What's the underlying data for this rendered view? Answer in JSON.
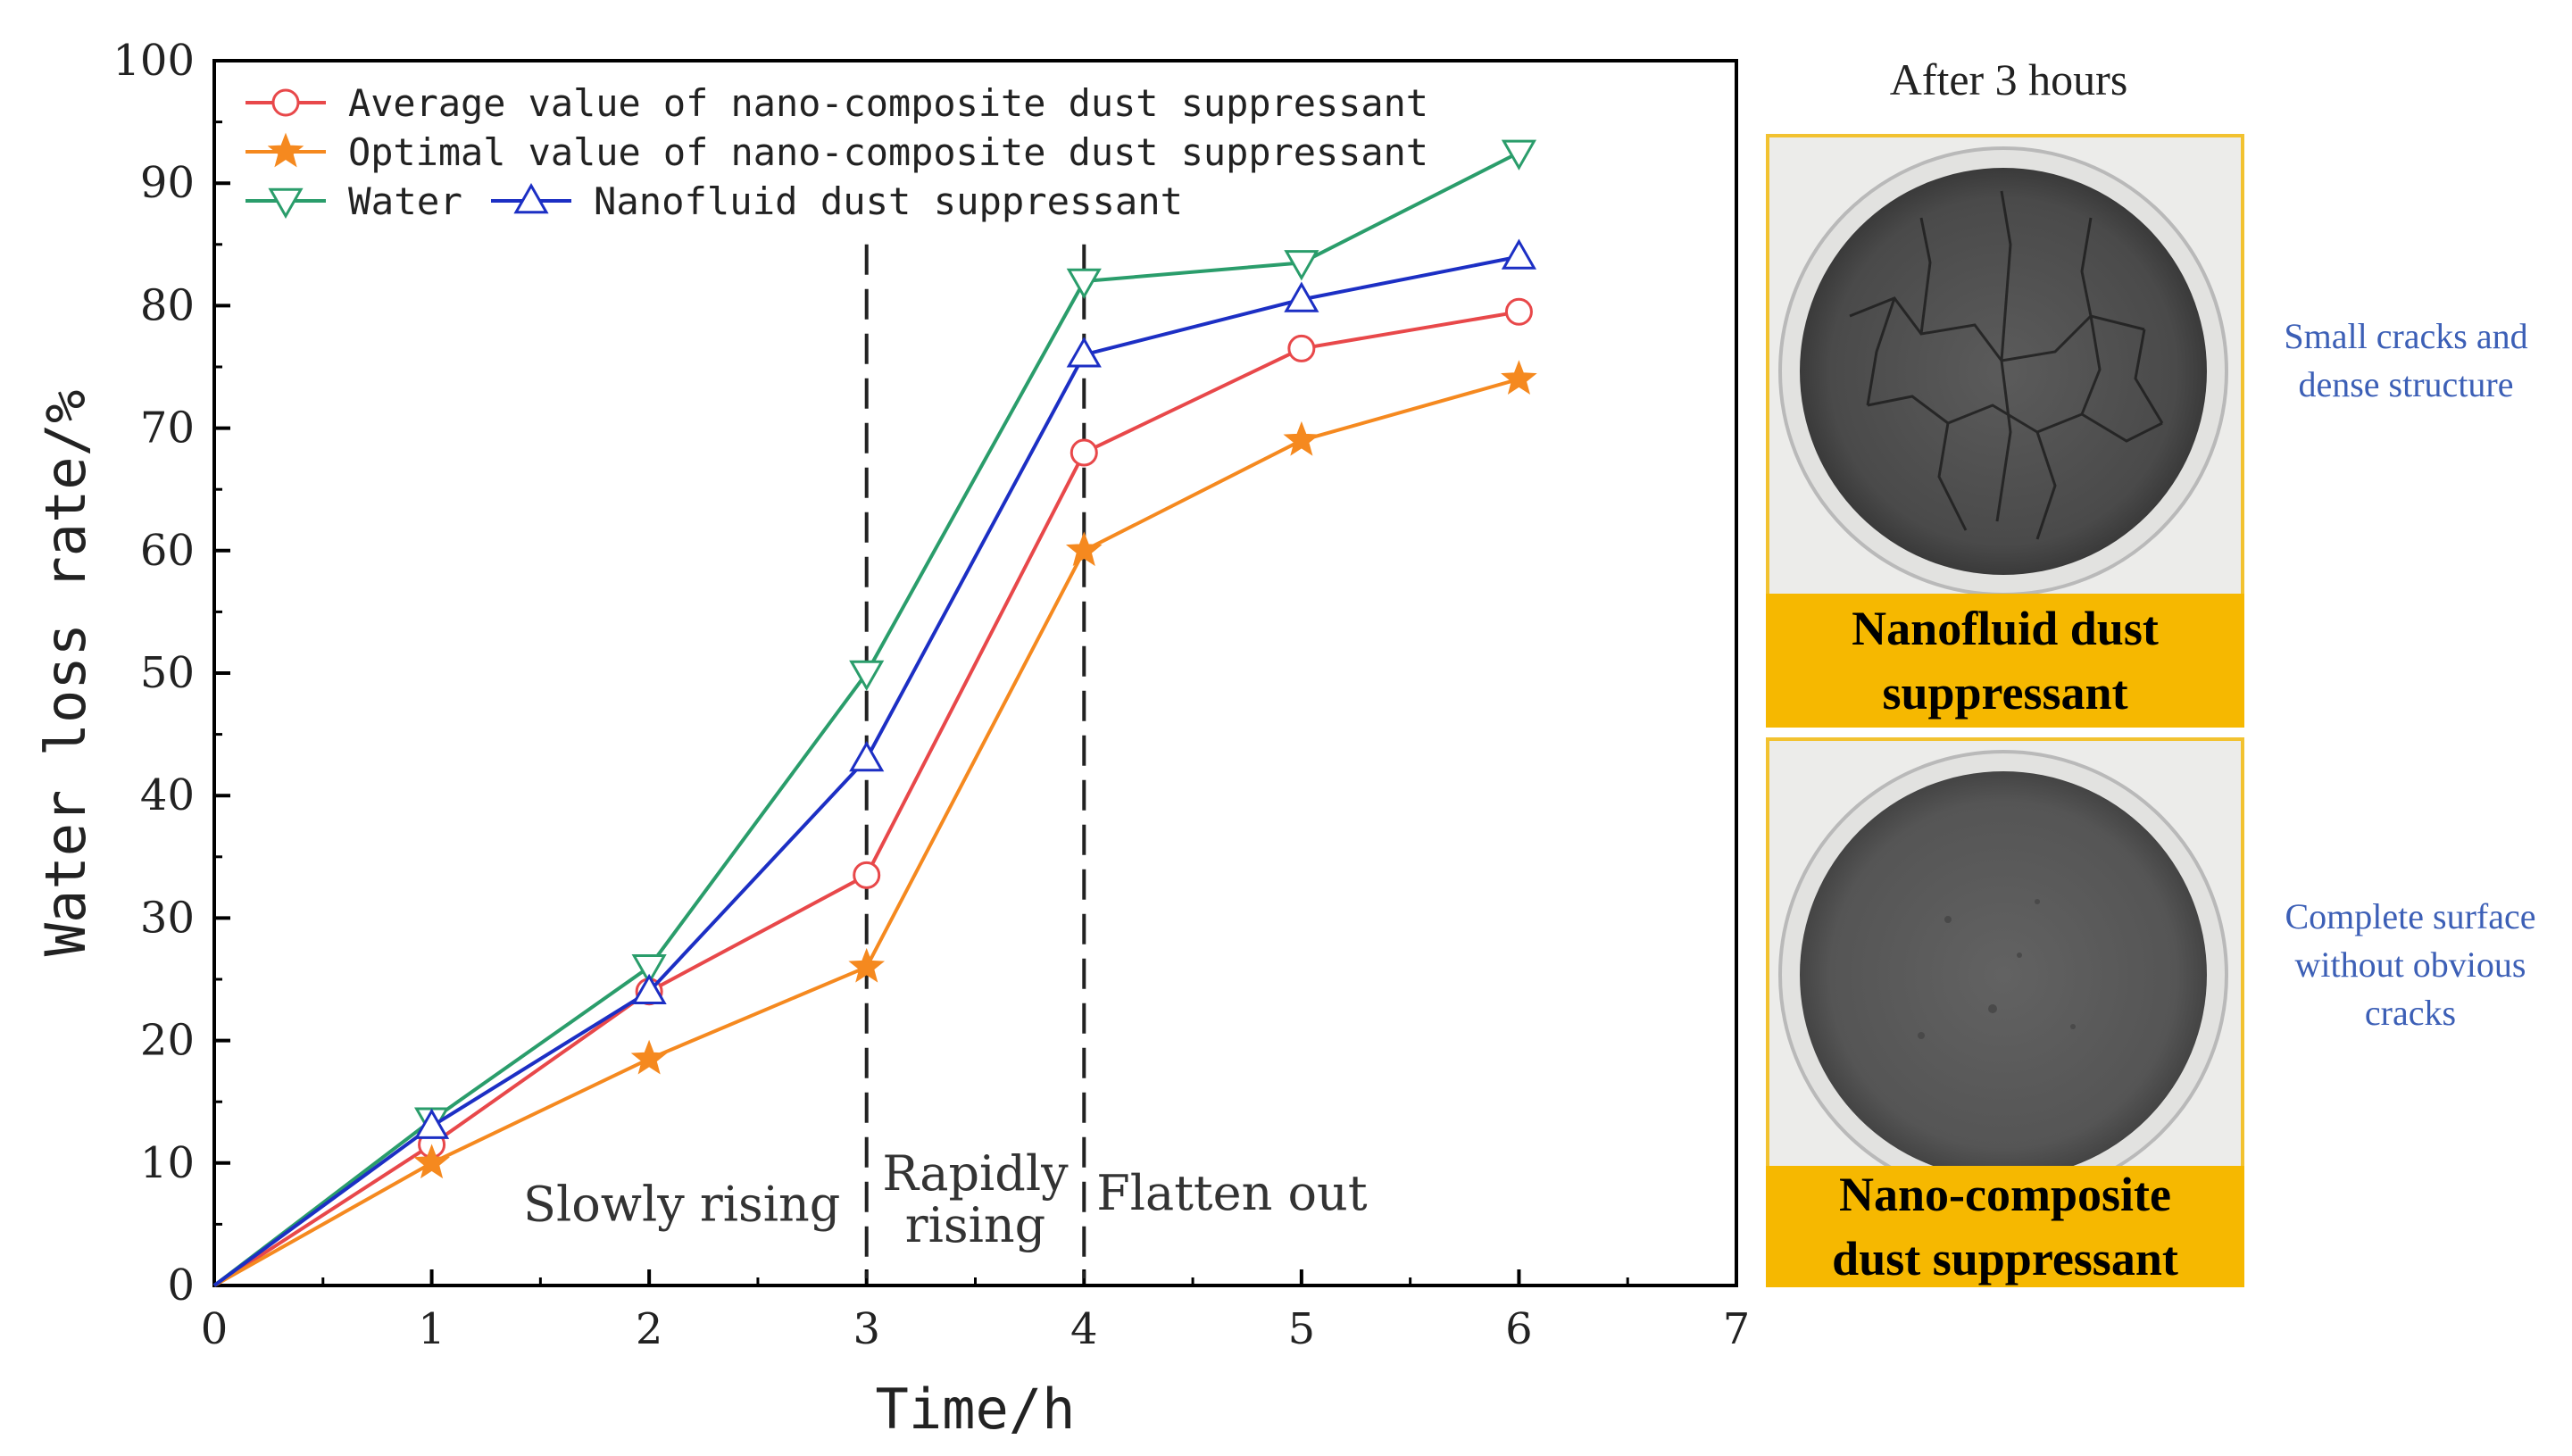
{
  "chart_data": {
    "type": "line",
    "title": "",
    "xlabel": "Time/h",
    "ylabel": "Water loss rate/%",
    "xlim": [
      0,
      7
    ],
    "ylim": [
      0,
      100
    ],
    "xticks": [
      0,
      1,
      2,
      3,
      4,
      5,
      6,
      7
    ],
    "yticks": [
      0,
      10,
      20,
      30,
      40,
      50,
      60,
      70,
      80,
      90,
      100
    ],
    "x": [
      0,
      1,
      2,
      3,
      4,
      5,
      6
    ],
    "series": [
      {
        "name": "Average value of nano-composite dust suppressant",
        "color": "#e8484a",
        "marker": "circle",
        "values": [
          0,
          11.5,
          24,
          33.5,
          68,
          76.5,
          79.5
        ]
      },
      {
        "name": "Optimal value of nano-composite dust suppressant",
        "color": "#f5891f",
        "marker": "star",
        "values": [
          0,
          10,
          18.5,
          26,
          60,
          69,
          74
        ]
      },
      {
        "name": "Water",
        "color": "#2a9d6b",
        "marker": "triangle-down",
        "values": [
          0,
          13.5,
          26,
          50,
          82,
          83.5,
          92.5
        ]
      },
      {
        "name": "Nanofluid dust suppressant",
        "color": "#1c2fc4",
        "marker": "triangle-up",
        "values": [
          0,
          13,
          24,
          43,
          76,
          80.5,
          84
        ]
      }
    ],
    "phase_lines": [
      3,
      4
    ],
    "annotations": [
      {
        "text": "Slowly rising"
      },
      {
        "text": "Rapidly\nrising"
      },
      {
        "text": "Flatten out"
      }
    ],
    "legend_position": "top-left"
  },
  "panel": {
    "title": "After 3 hours",
    "top_caption": "Nanofluid dust\nsuppressant",
    "bottom_caption": "Nano-composite\ndust suppressant",
    "top_note": "Small cracks and\ndense structure",
    "bottom_note": "Complete surface\nwithout obvious\ncracks",
    "caption_color": "#f6b800",
    "note_color": "#3c5fb6"
  }
}
